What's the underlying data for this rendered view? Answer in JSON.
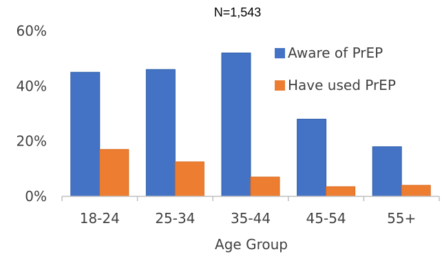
{
  "chart_data": {
    "type": "bar",
    "subtitle": "N=1,543",
    "categories": [
      "18-24",
      "25-34",
      "35-44",
      "45-54",
      "55+"
    ],
    "series": [
      {
        "name": "Aware of PrEP",
        "color": "#4472C4",
        "values": [
          45,
          46,
          52,
          28,
          18
        ]
      },
      {
        "name": "Have used PrEP",
        "color": "#ED7D31",
        "values": [
          17,
          12.5,
          7,
          3.5,
          4
        ]
      }
    ],
    "xlabel": "Age Group",
    "ylabel": "",
    "ylim": [
      0,
      60
    ],
    "yticks": [
      "0%",
      "20%",
      "40%",
      "60%"
    ],
    "grid": false,
    "legend_position": "top-right"
  }
}
